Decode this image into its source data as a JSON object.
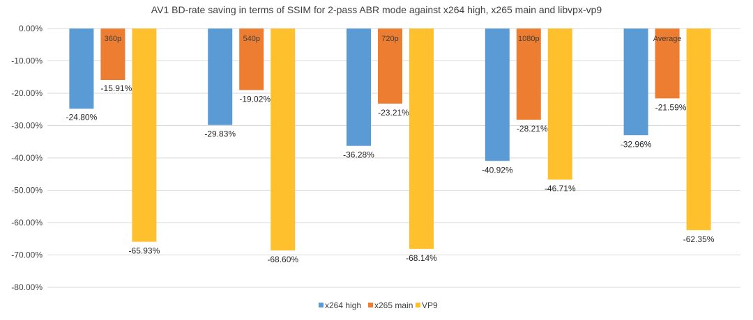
{
  "chart_data": {
    "type": "bar",
    "title": "AV1 BD-rate saving in terms of SSIM for 2-pass ABR mode against x264 high, x265 main and libvpx-vp9",
    "categories": [
      "360p",
      "540p",
      "720p",
      "1080p",
      "Average"
    ],
    "series": [
      {
        "name": "x264 high",
        "color": "#5B9BD5",
        "values": [
          -24.8,
          -29.83,
          -36.28,
          -40.92,
          -32.96
        ]
      },
      {
        "name": "x265 main",
        "color": "#ED7D31",
        "values": [
          -15.91,
          -19.02,
          -23.21,
          -28.21,
          -21.59
        ]
      },
      {
        "name": "VP9",
        "color": "#FFC02E",
        "values": [
          -65.93,
          -68.6,
          -68.14,
          -46.71,
          -62.35
        ]
      }
    ],
    "data_labels": [
      [
        "-24.80%",
        "-29.83%",
        "-36.28%",
        "-40.92%",
        "-32.96%"
      ],
      [
        "-15.91%",
        "-19.02%",
        "-23.21%",
        "-28.21%",
        "-21.59%"
      ],
      [
        "-65.93%",
        "-68.60%",
        "-68.14%",
        "-46.71%",
        "-62.35%"
      ]
    ],
    "ylim": [
      -80,
      0
    ],
    "yticks": [
      0,
      -10,
      -20,
      -30,
      -40,
      -50,
      -60,
      -70,
      -80
    ],
    "ytick_labels": [
      "0.00%",
      "-10.00%",
      "-20.00%",
      "-30.00%",
      "-40.00%",
      "-50.00%",
      "-60.00%",
      "-70.00%",
      "-80.00%"
    ],
    "grid": true,
    "grid_color": "#D9D9D9",
    "legend_position": "bottom"
  }
}
